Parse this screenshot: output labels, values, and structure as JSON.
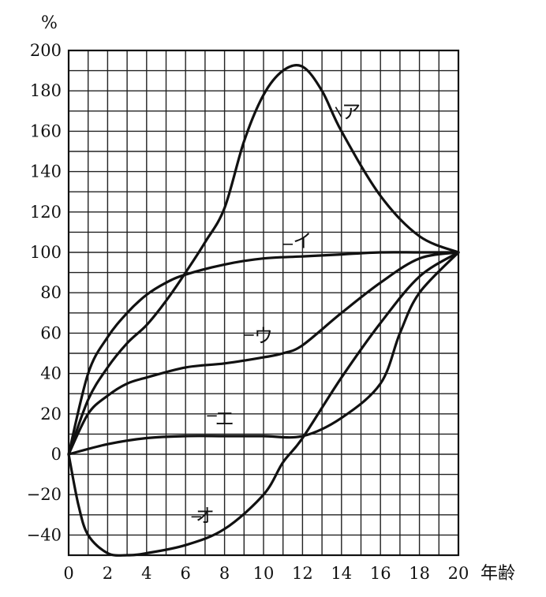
{
  "chart_data": {
    "type": "line",
    "title": "",
    "xlabel": "年齢",
    "ylabel": "%",
    "xlim": [
      0,
      20
    ],
    "ylim": [
      -50,
      200
    ],
    "x_ticks": [
      "0",
      "2",
      "4",
      "6",
      "8",
      "10",
      "12",
      "14",
      "16",
      "18",
      "20"
    ],
    "y_ticks": [
      "200",
      "180",
      "160",
      "140",
      "120",
      "100",
      "80",
      "60",
      "40",
      "20",
      "0",
      "−20",
      "−40"
    ],
    "grid": true,
    "series": [
      {
        "name": "ア",
        "x": [
          0,
          1,
          2,
          3,
          4,
          5,
          6,
          7,
          8,
          9,
          10,
          11,
          12,
          13,
          14,
          16,
          18,
          20
        ],
        "y": [
          0,
          27,
          43,
          55,
          64,
          76,
          90,
          105,
          122,
          155,
          178,
          190,
          192,
          180,
          160,
          128,
          108,
          100
        ]
      },
      {
        "name": "イ",
        "x": [
          0,
          1,
          2,
          3,
          4,
          5,
          6,
          8,
          10,
          12,
          14,
          16,
          18,
          20
        ],
        "y": [
          0,
          40,
          58,
          70,
          79,
          85,
          89,
          94,
          97,
          98,
          99,
          100,
          100,
          100
        ]
      },
      {
        "name": "ウ",
        "x": [
          0,
          1,
          2,
          3,
          4,
          6,
          8,
          10,
          11,
          12,
          14,
          16,
          18,
          20
        ],
        "y": [
          0,
          20,
          29,
          35,
          38,
          43,
          45,
          48,
          50,
          54,
          70,
          85,
          97,
          100
        ]
      },
      {
        "name": "エ",
        "x": [
          0,
          2,
          4,
          6,
          8,
          10,
          12,
          14,
          16,
          17,
          18,
          20
        ],
        "y": [
          0,
          5,
          8,
          9,
          9,
          9,
          9,
          18,
          35,
          60,
          80,
          100
        ]
      },
      {
        "name": "オ",
        "x": [
          0,
          0.5,
          1,
          2,
          3,
          4,
          6,
          8,
          10,
          11,
          12,
          14,
          16,
          18,
          20
        ],
        "y": [
          0,
          -25,
          -40,
          -49,
          -50,
          -49,
          -45,
          -37,
          -20,
          -4,
          8,
          38,
          65,
          88,
          100
        ]
      }
    ]
  }
}
